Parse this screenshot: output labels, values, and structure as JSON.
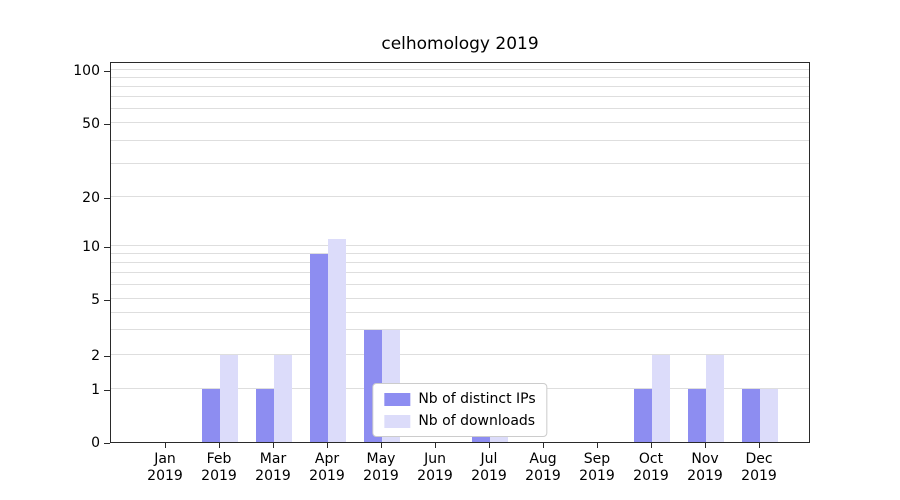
{
  "chart_data": {
    "type": "bar",
    "title": "celhomology 2019",
    "categories": [
      "Jan 2019",
      "Feb 2019",
      "Mar 2019",
      "Apr 2019",
      "May 2019",
      "Jun 2019",
      "Jul 2019",
      "Aug 2019",
      "Sep 2019",
      "Oct 2019",
      "Nov 2019",
      "Dec 2019"
    ],
    "series": [
      {
        "name": "Nb of distinct IPs",
        "color": "#8d8df1",
        "values": [
          0,
          1,
          1,
          9,
          3,
          0,
          1,
          0,
          0,
          1,
          1,
          1
        ]
      },
      {
        "name": "Nb of downloads",
        "color": "#dcdcfa",
        "values": [
          0,
          2,
          2,
          11,
          3,
          0,
          1,
          0,
          0,
          2,
          2,
          1
        ]
      }
    ],
    "yscale": "symlog",
    "y_ticks": [
      0,
      1,
      2,
      5,
      10,
      20,
      50,
      100
    ],
    "ylim": [
      0,
      100
    ],
    "xlabel": "",
    "ylabel": "",
    "grid": true,
    "legend_position": "lower center"
  }
}
